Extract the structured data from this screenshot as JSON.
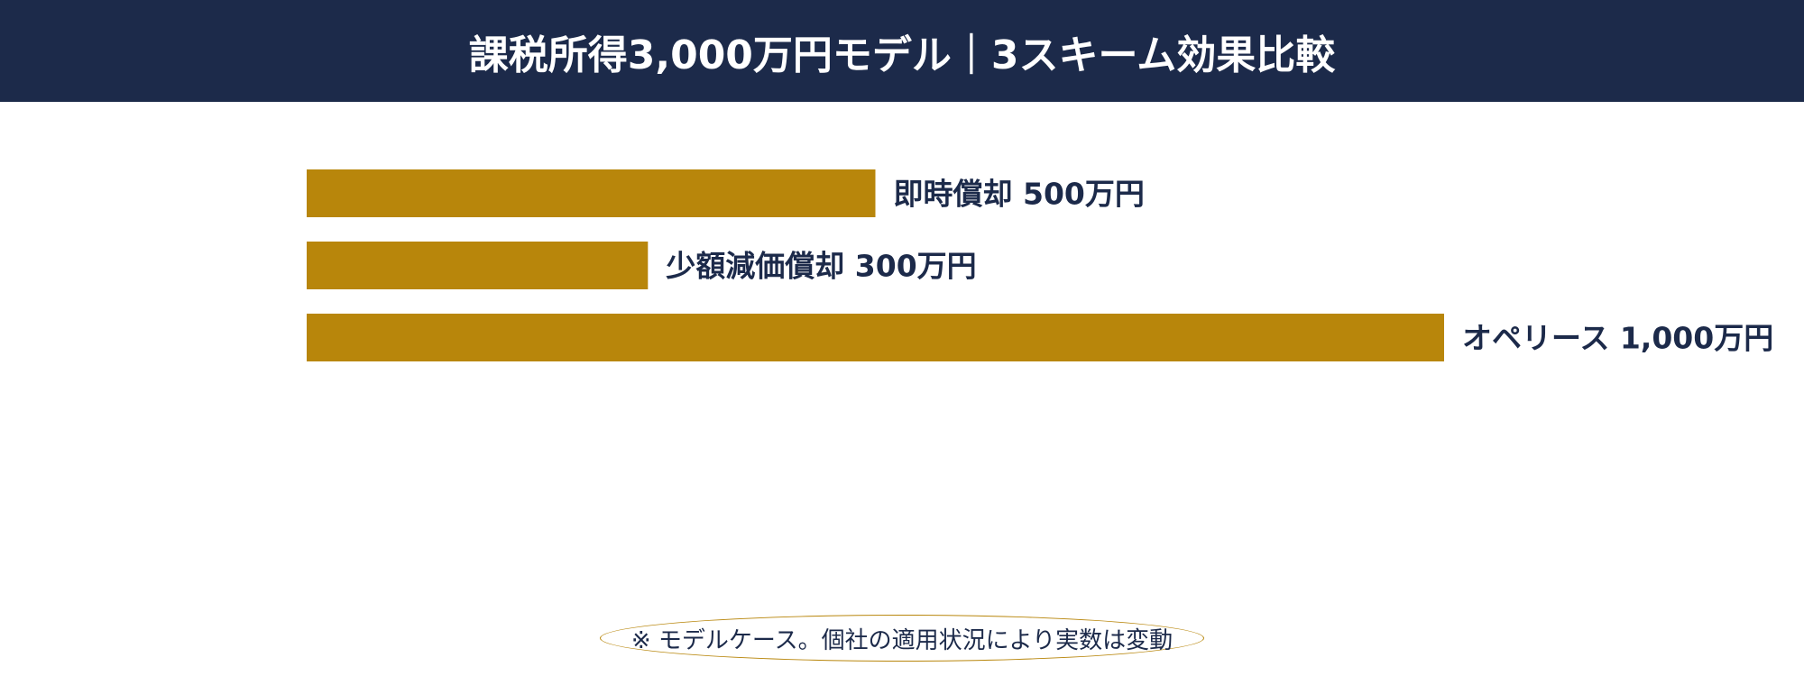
{
  "header": {
    "title": "課税所得3,000万円モデル｜3スキーム効果比較"
  },
  "colors": {
    "header_bg": "#1c2a4a",
    "bar": "#b8860b",
    "label": "#1c2a4a"
  },
  "chart_data": {
    "type": "bar",
    "orientation": "horizontal",
    "categories": [
      "即時償却",
      "少額減価償却",
      "オペリース"
    ],
    "values": [
      500,
      300,
      1000
    ],
    "unit": "万円",
    "data_labels": [
      "即時償却 500万円",
      "少額減価償却 300万円",
      "オペリース 1,000万円"
    ],
    "xlim": [
      0,
      1000
    ],
    "grid": false,
    "legend": "none"
  },
  "note": {
    "text": "※ モデルケース。個社の適用状況により実数は変動"
  }
}
